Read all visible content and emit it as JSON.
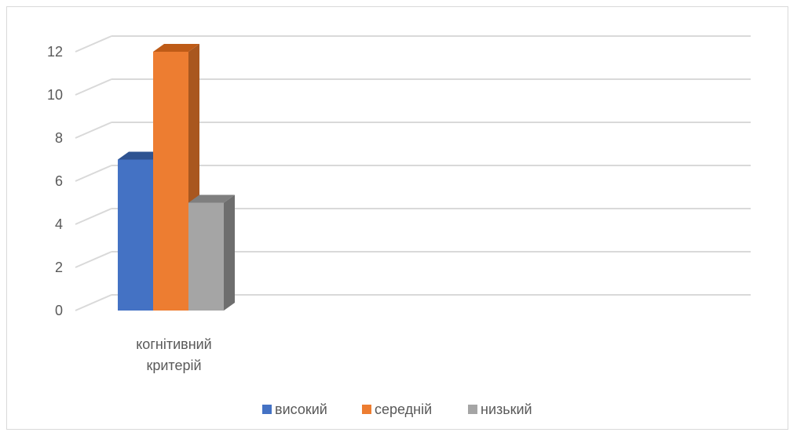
{
  "chart_data": {
    "type": "bar",
    "categories": [
      "когнітивний критерій"
    ],
    "category_lines": [
      [
        "когнітивний",
        "критерій"
      ]
    ],
    "series": [
      {
        "name": "високий",
        "values": [
          7
        ],
        "color": "#4472C4",
        "side_color": "#2F5597",
        "top_color": "#2E5391"
      },
      {
        "name": "середній",
        "values": [
          12
        ],
        "color": "#ED7D31",
        "side_color": "#A9571F",
        "top_color": "#BE5B17"
      },
      {
        "name": "низький",
        "values": [
          5
        ],
        "color": "#A5A5A5",
        "side_color": "#6E6E6E",
        "top_color": "#7F7F7F"
      }
    ],
    "yticks": [
      0,
      2,
      4,
      6,
      8,
      10,
      12
    ],
    "ylim": [
      0,
      12
    ],
    "three_d": true,
    "grid": true,
    "gridline_color": "#d9d9d9",
    "legend_position": "bottom",
    "title": "",
    "xlabel": "",
    "ylabel": ""
  }
}
